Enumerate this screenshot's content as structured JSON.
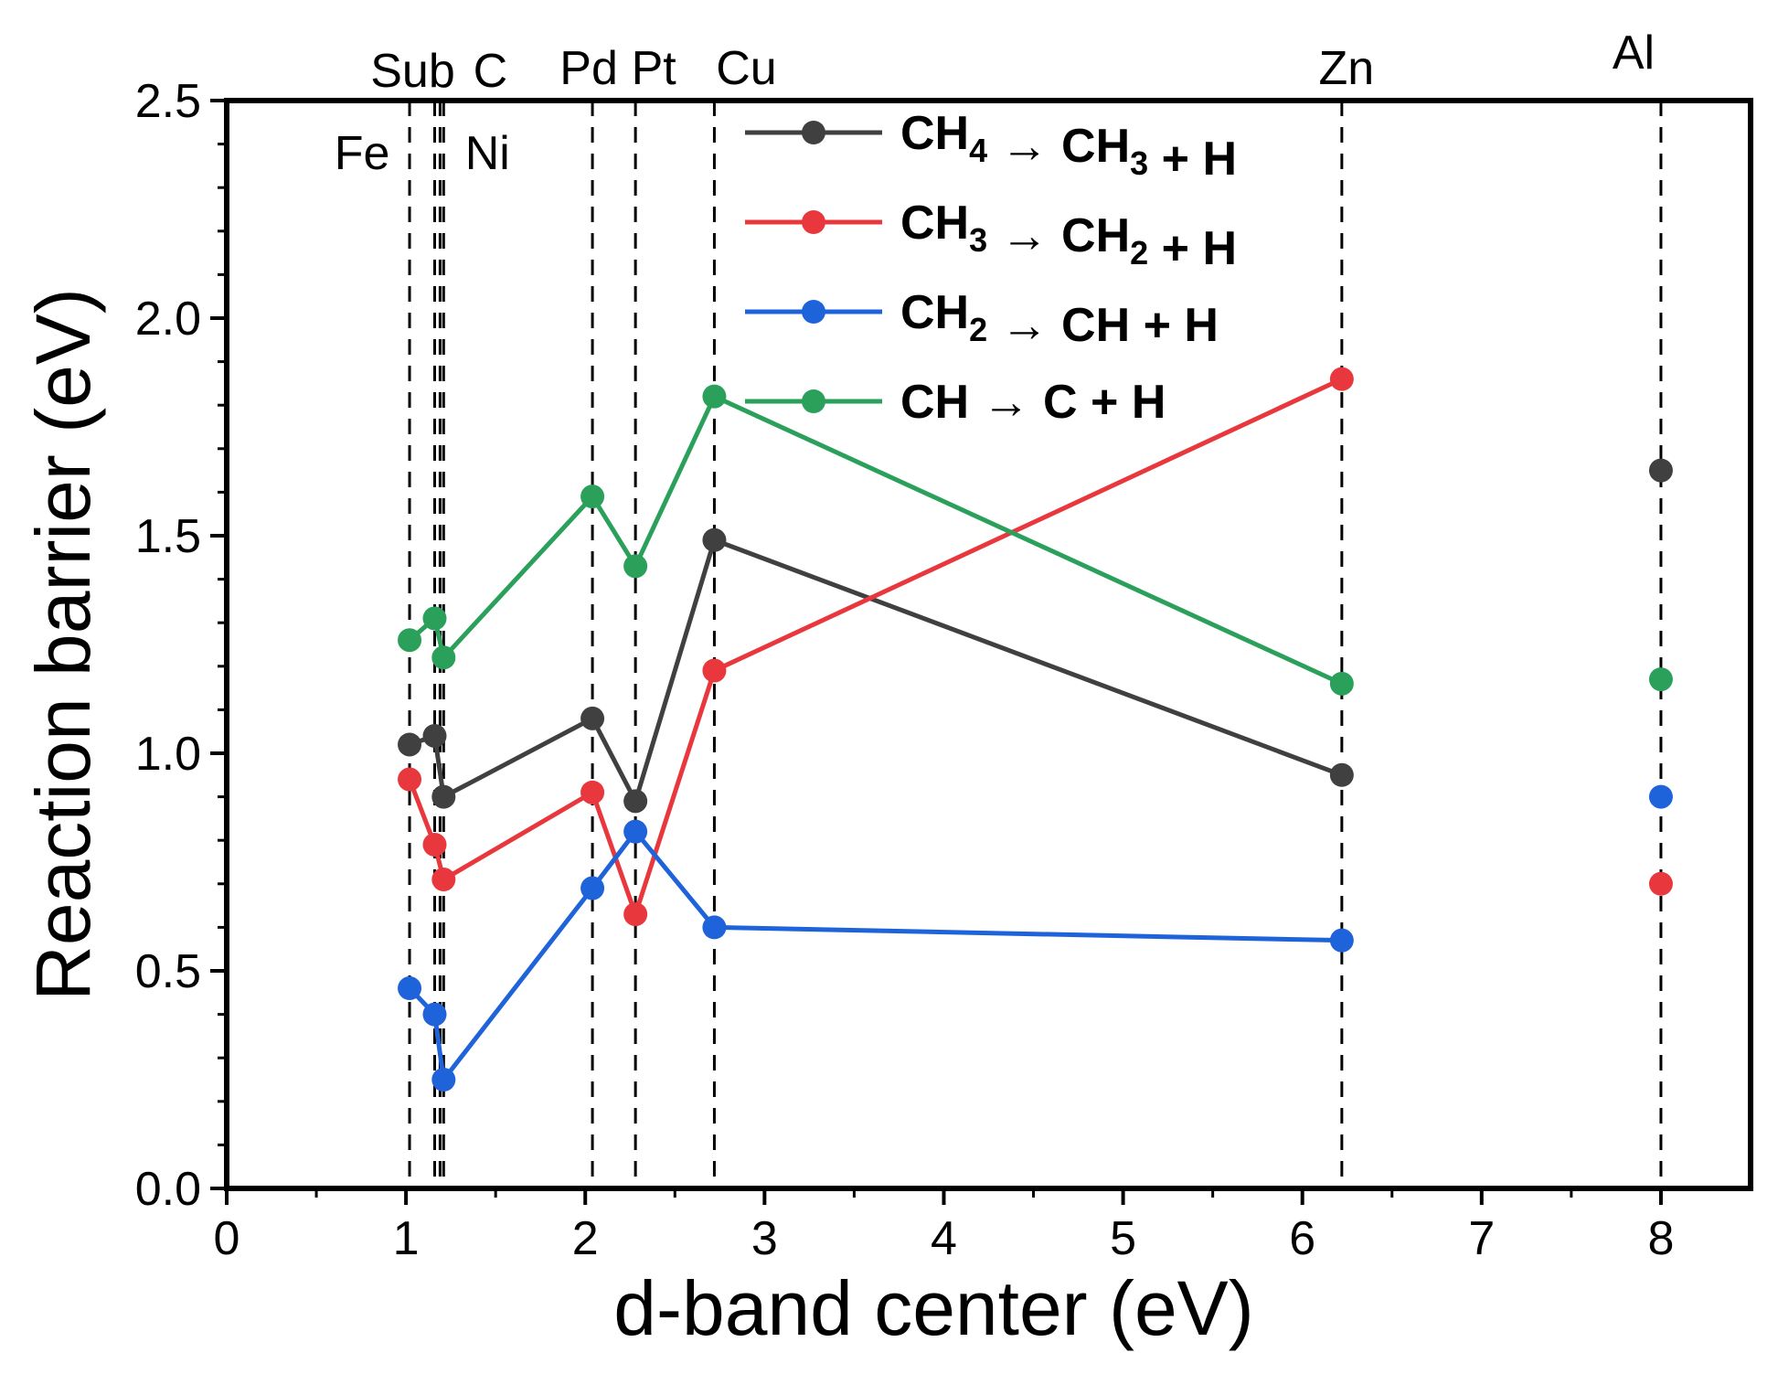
{
  "chart_data": {
    "type": "line",
    "title": "",
    "xlabel": "d-band center (eV)",
    "ylabel": "Reaction barrier (eV)",
    "xlim": [
      0,
      8.5
    ],
    "ylim": [
      0,
      2.5
    ],
    "xticks": [
      "0",
      "1",
      "2",
      "3",
      "4",
      "5",
      "6",
      "7",
      "8"
    ],
    "yticks": [
      "0.0",
      "0.5",
      "1.0",
      "1.5",
      "2.0",
      "2.5"
    ],
    "grid": false,
    "legend_position": "top-center",
    "substrates": [
      {
        "name": "Fe",
        "x": 1.02
      },
      {
        "name": "Sub",
        "x": 1.16
      },
      {
        "name": "C",
        "x": 1.19
      },
      {
        "name": "Ni",
        "x": 1.21
      },
      {
        "name": "Pd",
        "x": 2.04
      },
      {
        "name": "Pt",
        "x": 2.28
      },
      {
        "name": "Cu",
        "x": 2.72
      },
      {
        "name": "Zn",
        "x": 6.22
      },
      {
        "name": "Al",
        "x": 8.0
      }
    ],
    "series": [
      {
        "name": "CH4 → CH3 + H",
        "legend": {
          "a": "CH",
          "a_sub": "4",
          "arrow": " → ",
          "b": "CH",
          "b_sub": "3",
          "rest": " + H"
        },
        "color": "#404040",
        "x": [
          1.02,
          1.16,
          1.21,
          2.04,
          2.28,
          2.72,
          6.22,
          8.0
        ],
        "y": [
          1.02,
          1.04,
          0.9,
          1.08,
          0.89,
          1.49,
          0.95,
          1.65
        ],
        "connected_points": 7
      },
      {
        "name": "CH3 → CH2 + H",
        "legend": {
          "a": "CH",
          "a_sub": "3",
          "arrow": " → ",
          "b": "CH",
          "b_sub": "2",
          "rest": " + H"
        },
        "color": "#e8383d",
        "x": [
          1.02,
          1.16,
          1.21,
          2.04,
          2.28,
          2.72,
          6.22,
          8.0
        ],
        "y": [
          0.94,
          0.79,
          0.71,
          0.91,
          0.63,
          1.19,
          1.86,
          0.7
        ],
        "connected_points": 7
      },
      {
        "name": "CH2 → CH + H",
        "legend": {
          "a": "CH",
          "a_sub": "2",
          "arrow": " → ",
          "b": "CH",
          "b_sub": "",
          "rest": " + H"
        },
        "color": "#1f63db",
        "x": [
          1.02,
          1.16,
          1.21,
          2.04,
          2.28,
          2.72,
          6.22,
          8.0
        ],
        "y": [
          0.46,
          0.4,
          0.25,
          0.69,
          0.82,
          0.6,
          0.57,
          0.9
        ],
        "connected_points": 7
      },
      {
        "name": "CH → C + H",
        "legend": {
          "a": "CH",
          "a_sub": "",
          "arrow": " → ",
          "b": "C",
          "b_sub": "",
          "rest": " + H"
        },
        "color": "#2aa05b",
        "x": [
          1.02,
          1.16,
          1.21,
          2.04,
          2.28,
          2.72,
          6.22,
          8.0
        ],
        "y": [
          1.26,
          1.31,
          1.22,
          1.59,
          1.43,
          1.82,
          1.16,
          1.17
        ],
        "connected_points": 7
      }
    ]
  }
}
